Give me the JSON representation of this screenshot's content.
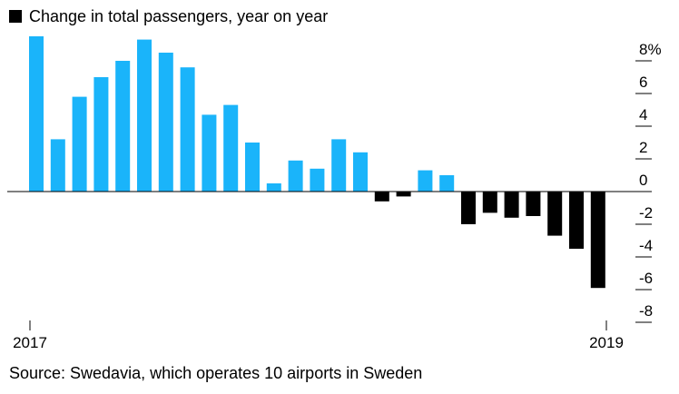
{
  "legend": {
    "label": "Change in total passengers, year on year",
    "color": "#000000"
  },
  "source": "Source: Swedavia, which operates 10 airports in Sweden",
  "chart_data": {
    "type": "bar",
    "series": [
      {
        "name": "Change in total passengers, year on year",
        "unit": "%",
        "values": [
          9.5,
          3.2,
          5.8,
          7.0,
          8.0,
          9.3,
          8.5,
          7.6,
          4.7,
          5.3,
          3.0,
          0.5,
          1.9,
          1.4,
          3.2,
          2.4,
          -0.6,
          -0.3,
          1.3,
          1.0,
          -2.0,
          -1.3,
          -1.6,
          -1.5,
          -2.7,
          -3.5,
          -5.9
        ]
      }
    ],
    "x_labels": [
      "2017",
      "2019"
    ],
    "x_label_bar_index": [
      0,
      26
    ],
    "ylim": [
      -8.5,
      9.5
    ],
    "y_ticks": [
      8,
      6,
      4,
      2,
      0,
      -2,
      -4,
      -6,
      -8
    ],
    "y_tick_labels": [
      "8%",
      "6",
      "4",
      "2",
      "0",
      "-2",
      "-4",
      "-6",
      "-8"
    ],
    "y_axis_position": "right",
    "colors": {
      "positive": "#1AB4FA",
      "negative": "#000000",
      "axis": "#000000"
    },
    "grid": false,
    "legend_position": "top-left"
  }
}
